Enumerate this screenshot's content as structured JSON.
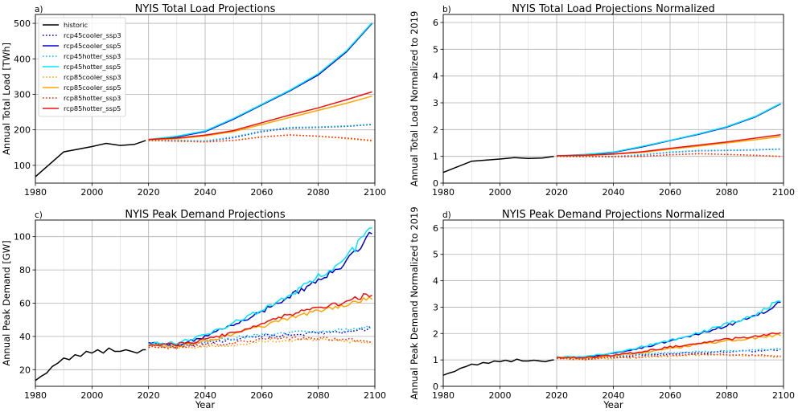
{
  "figure": {
    "series_styles": [
      {
        "name": "historic",
        "color": "#000000",
        "dash": "solid"
      },
      {
        "name": "rcp45cooler_ssp3",
        "color": "#0000ff",
        "dash": "dotted"
      },
      {
        "name": "rcp45cooler_ssp5",
        "color": "#0000cd",
        "dash": "solid"
      },
      {
        "name": "rcp45hotter_ssp3",
        "color": "#00bfff",
        "dash": "dotted"
      },
      {
        "name": "rcp45hotter_ssp5",
        "color": "#00e5ff",
        "dash": "solid"
      },
      {
        "name": "rcp85cooler_ssp3",
        "color": "#ffa500",
        "dash": "dotted"
      },
      {
        "name": "rcp85cooler_ssp5",
        "color": "#ffa500",
        "dash": "solid"
      },
      {
        "name": "rcp85hotter_ssp3",
        "color": "#ff2000",
        "dash": "dotted"
      },
      {
        "name": "rcp85hotter_ssp5",
        "color": "#ee1111",
        "dash": "solid"
      }
    ]
  },
  "chart_data": [
    {
      "type": "line",
      "panel_label": "a)",
      "title": "NYIS Total Load Projections",
      "xlabel": "",
      "ylabel": "Annual Total Load [TWh]",
      "xlim": [
        1980,
        2100
      ],
      "ylim": [
        50,
        525
      ],
      "xticks": [
        1980,
        2000,
        2020,
        2040,
        2060,
        2080,
        2100
      ],
      "yticks": [
        100,
        200,
        300,
        400,
        500
      ],
      "grid": true,
      "legend": "upper left",
      "noise": 0,
      "historic": {
        "x": [
          1980,
          1990,
          2000,
          2005,
          2010,
          2015,
          2019
        ],
        "y": [
          68,
          138,
          153,
          162,
          156,
          159,
          170
        ]
      },
      "series": [
        {
          "name": "rcp45cooler_ssp3",
          "x": [
            2020,
            2030,
            2040,
            2050,
            2060,
            2070,
            2080,
            2090,
            2099
          ],
          "y": [
            170,
            170,
            168,
            178,
            195,
            205,
            207,
            210,
            215
          ]
        },
        {
          "name": "rcp45cooler_ssp5",
          "x": [
            2020,
            2030,
            2040,
            2050,
            2060,
            2070,
            2080,
            2090,
            2099
          ],
          "y": [
            172,
            180,
            195,
            230,
            270,
            310,
            355,
            420,
            500
          ]
        },
        {
          "name": "rcp45hotter_ssp3",
          "x": [
            2020,
            2030,
            2040,
            2050,
            2060,
            2070,
            2080,
            2090,
            2099
          ],
          "y": [
            171,
            171,
            169,
            180,
            197,
            207,
            208,
            211,
            216
          ]
        },
        {
          "name": "rcp45hotter_ssp5",
          "x": [
            2020,
            2030,
            2040,
            2050,
            2060,
            2070,
            2080,
            2090,
            2099
          ],
          "y": [
            173,
            182,
            197,
            232,
            272,
            312,
            358,
            423,
            502
          ]
        },
        {
          "name": "rcp85cooler_ssp3",
          "x": [
            2020,
            2030,
            2040,
            2050,
            2060,
            2070,
            2080,
            2090,
            2099
          ],
          "y": [
            170,
            168,
            167,
            170,
            180,
            185,
            182,
            175,
            168
          ]
        },
        {
          "name": "rcp85cooler_ssp5",
          "x": [
            2020,
            2030,
            2040,
            2050,
            2060,
            2070,
            2080,
            2090,
            2099
          ],
          "y": [
            172,
            175,
            183,
            195,
            215,
            235,
            255,
            275,
            295
          ]
        },
        {
          "name": "rcp85hotter_ssp3",
          "x": [
            2020,
            2030,
            2040,
            2050,
            2060,
            2070,
            2080,
            2090,
            2099
          ],
          "y": [
            170,
            168,
            166,
            170,
            180,
            186,
            182,
            177,
            170
          ]
        },
        {
          "name": "rcp85hotter_ssp5",
          "x": [
            2020,
            2030,
            2040,
            2050,
            2060,
            2070,
            2080,
            2090,
            2099
          ],
          "y": [
            173,
            177,
            185,
            198,
            220,
            242,
            262,
            285,
            307
          ]
        }
      ]
    },
    {
      "type": "line",
      "panel_label": "b)",
      "title": "NYIS Total Load Projections Normalized",
      "xlabel": "",
      "ylabel": "Annual Total Load Normalized to 2019",
      "xlim": [
        1980,
        2100
      ],
      "ylim": [
        0,
        6.3
      ],
      "xticks": [
        1980,
        2000,
        2020,
        2040,
        2060,
        2080,
        2100
      ],
      "yticks": [
        0,
        1,
        2,
        3,
        4,
        5,
        6
      ],
      "grid": true,
      "legend": "none",
      "noise": 0,
      "historic": {
        "x": [
          1980,
          1990,
          2000,
          2005,
          2010,
          2015,
          2019
        ],
        "y": [
          0.4,
          0.82,
          0.9,
          0.95,
          0.92,
          0.94,
          1.0
        ]
      },
      "series": [
        {
          "name": "rcp45cooler_ssp3",
          "x": [
            2020,
            2030,
            2040,
            2050,
            2060,
            2070,
            2080,
            2090,
            2099
          ],
          "y": [
            1.0,
            1.0,
            0.99,
            1.05,
            1.15,
            1.21,
            1.22,
            1.24,
            1.27
          ]
        },
        {
          "name": "rcp45cooler_ssp5",
          "x": [
            2020,
            2030,
            2040,
            2050,
            2060,
            2070,
            2080,
            2090,
            2099
          ],
          "y": [
            1.01,
            1.06,
            1.15,
            1.35,
            1.59,
            1.82,
            2.09,
            2.47,
            2.96
          ]
        },
        {
          "name": "rcp45hotter_ssp3",
          "x": [
            2020,
            2030,
            2040,
            2050,
            2060,
            2070,
            2080,
            2090,
            2099
          ],
          "y": [
            1.0,
            1.01,
            1.0,
            1.06,
            1.16,
            1.22,
            1.23,
            1.25,
            1.28
          ]
        },
        {
          "name": "rcp45hotter_ssp5",
          "x": [
            2020,
            2030,
            2040,
            2050,
            2060,
            2070,
            2080,
            2090,
            2099
          ],
          "y": [
            1.02,
            1.07,
            1.16,
            1.37,
            1.6,
            1.84,
            2.11,
            2.49,
            2.98
          ]
        },
        {
          "name": "rcp85cooler_ssp3",
          "x": [
            2020,
            2030,
            2040,
            2050,
            2060,
            2070,
            2080,
            2090,
            2099
          ],
          "y": [
            1.0,
            0.99,
            0.98,
            1.0,
            1.06,
            1.09,
            1.07,
            1.03,
            0.99
          ]
        },
        {
          "name": "rcp85cooler_ssp5",
          "x": [
            2020,
            2030,
            2040,
            2050,
            2060,
            2070,
            2080,
            2090,
            2099
          ],
          "y": [
            1.01,
            1.03,
            1.08,
            1.15,
            1.27,
            1.38,
            1.5,
            1.62,
            1.74
          ]
        },
        {
          "name": "rcp85hotter_ssp3",
          "x": [
            2020,
            2030,
            2040,
            2050,
            2060,
            2070,
            2080,
            2090,
            2099
          ],
          "y": [
            1.0,
            0.99,
            0.98,
            1.0,
            1.06,
            1.1,
            1.07,
            1.04,
            1.0
          ]
        },
        {
          "name": "rcp85hotter_ssp5",
          "x": [
            2020,
            2030,
            2040,
            2050,
            2060,
            2070,
            2080,
            2090,
            2099
          ],
          "y": [
            1.02,
            1.04,
            1.09,
            1.17,
            1.3,
            1.42,
            1.54,
            1.68,
            1.81
          ]
        }
      ]
    },
    {
      "type": "line",
      "panel_label": "c)",
      "title": "NYIS Peak Demand Projections",
      "xlabel": "Year",
      "ylabel": "Annual Peak Demand [GW]",
      "xlim": [
        1980,
        2100
      ],
      "ylim": [
        10,
        110
      ],
      "xticks": [
        1980,
        2000,
        2020,
        2040,
        2060,
        2080,
        2100
      ],
      "yticks": [
        20,
        40,
        60,
        80,
        100
      ],
      "grid": true,
      "legend": "none",
      "noise": 0.025,
      "historic": {
        "x": [
          1980,
          1982,
          1984,
          1986,
          1988,
          1990,
          1992,
          1994,
          1996,
          1998,
          2000,
          2002,
          2004,
          2006,
          2008,
          2010,
          2012,
          2014,
          2016,
          2018,
          2019
        ],
        "y": [
          13.5,
          16,
          18,
          22,
          24,
          27,
          26,
          29,
          28,
          31,
          30,
          32,
          30,
          33,
          31,
          31,
          32,
          31,
          30,
          32,
          32
        ]
      },
      "series": [
        {
          "name": "rcp45cooler_ssp3",
          "x": [
            2020,
            2030,
            2040,
            2050,
            2060,
            2070,
            2080,
            2090,
            2099
          ],
          "y": [
            35,
            34,
            36,
            38,
            40,
            41,
            42,
            43,
            45
          ]
        },
        {
          "name": "rcp45cooler_ssp5",
          "x": [
            2020,
            2030,
            2040,
            2050,
            2060,
            2070,
            2080,
            2090,
            2099
          ],
          "y": [
            36,
            35,
            40,
            47,
            55,
            64,
            74,
            85,
            103
          ]
        },
        {
          "name": "rcp45hotter_ssp3",
          "x": [
            2020,
            2030,
            2040,
            2050,
            2060,
            2070,
            2080,
            2090,
            2099
          ],
          "y": [
            35,
            35,
            37,
            39,
            41,
            42,
            43,
            44,
            46
          ]
        },
        {
          "name": "rcp45hotter_ssp5",
          "x": [
            2020,
            2030,
            2040,
            2050,
            2060,
            2070,
            2080,
            2090,
            2099
          ],
          "y": [
            36,
            36,
            41,
            48,
            56,
            65,
            76,
            87,
            106
          ]
        },
        {
          "name": "rcp85cooler_ssp3",
          "x": [
            2020,
            2030,
            2040,
            2050,
            2060,
            2070,
            2080,
            2090,
            2099
          ],
          "y": [
            34,
            33,
            34,
            35,
            37,
            38,
            38,
            37,
            36
          ]
        },
        {
          "name": "rcp85cooler_ssp5",
          "x": [
            2020,
            2030,
            2040,
            2050,
            2060,
            2070,
            2080,
            2090,
            2099
          ],
          "y": [
            35,
            34,
            37,
            41,
            46,
            51,
            55,
            59,
            63
          ]
        },
        {
          "name": "rcp85hotter_ssp3",
          "x": [
            2020,
            2030,
            2040,
            2050,
            2060,
            2070,
            2080,
            2090,
            2099
          ],
          "y": [
            34,
            33,
            35,
            36,
            38,
            39,
            39,
            38,
            37
          ]
        },
        {
          "name": "rcp85hotter_ssp5",
          "x": [
            2020,
            2030,
            2040,
            2050,
            2060,
            2070,
            2080,
            2090,
            2099
          ],
          "y": [
            35,
            35,
            38,
            42,
            48,
            53,
            57,
            61,
            66
          ]
        }
      ]
    },
    {
      "type": "line",
      "panel_label": "d)",
      "title": "NYIS Peak Demand Projections Normalized",
      "xlabel": "Year",
      "ylabel": "Annual Peak Demand Normalized to 2019",
      "xlim": [
        1980,
        2100
      ],
      "ylim": [
        0,
        6.3
      ],
      "xticks": [
        1980,
        2000,
        2020,
        2040,
        2060,
        2080,
        2100
      ],
      "yticks": [
        0,
        1,
        2,
        3,
        4,
        5,
        6
      ],
      "grid": true,
      "legend": "none",
      "noise": 0.025,
      "historic": {
        "x": [
          1980,
          1982,
          1984,
          1986,
          1988,
          1990,
          1992,
          1994,
          1996,
          1998,
          2000,
          2002,
          2004,
          2006,
          2008,
          2010,
          2012,
          2014,
          2016,
          2018,
          2019
        ],
        "y": [
          0.42,
          0.5,
          0.56,
          0.68,
          0.75,
          0.84,
          0.81,
          0.9,
          0.87,
          0.96,
          0.93,
          0.99,
          0.93,
          1.03,
          0.96,
          0.96,
          0.99,
          0.96,
          0.93,
          0.99,
          1.0
        ]
      },
      "series": [
        {
          "name": "rcp45cooler_ssp3",
          "x": [
            2020,
            2030,
            2040,
            2050,
            2060,
            2070,
            2080,
            2090,
            2099
          ],
          "y": [
            1.09,
            1.06,
            1.12,
            1.18,
            1.24,
            1.27,
            1.3,
            1.34,
            1.4
          ]
        },
        {
          "name": "rcp45cooler_ssp5",
          "x": [
            2020,
            2030,
            2040,
            2050,
            2060,
            2070,
            2080,
            2090,
            2099
          ],
          "y": [
            1.12,
            1.09,
            1.24,
            1.46,
            1.71,
            1.99,
            2.3,
            2.64,
            3.2
          ]
        },
        {
          "name": "rcp45hotter_ssp3",
          "x": [
            2020,
            2030,
            2040,
            2050,
            2060,
            2070,
            2080,
            2090,
            2099
          ],
          "y": [
            1.09,
            1.09,
            1.15,
            1.21,
            1.27,
            1.3,
            1.34,
            1.37,
            1.43
          ]
        },
        {
          "name": "rcp45hotter_ssp5",
          "x": [
            2020,
            2030,
            2040,
            2050,
            2060,
            2070,
            2080,
            2090,
            2099
          ],
          "y": [
            1.12,
            1.12,
            1.27,
            1.49,
            1.74,
            2.02,
            2.36,
            2.7,
            3.3
          ]
        },
        {
          "name": "rcp85cooler_ssp3",
          "x": [
            2020,
            2030,
            2040,
            2050,
            2060,
            2070,
            2080,
            2090,
            2099
          ],
          "y": [
            1.06,
            1.02,
            1.06,
            1.09,
            1.15,
            1.18,
            1.18,
            1.15,
            1.12
          ]
        },
        {
          "name": "rcp85cooler_ssp5",
          "x": [
            2020,
            2030,
            2040,
            2050,
            2060,
            2070,
            2080,
            2090,
            2099
          ],
          "y": [
            1.09,
            1.06,
            1.15,
            1.27,
            1.43,
            1.58,
            1.71,
            1.83,
            1.96
          ]
        },
        {
          "name": "rcp85hotter_ssp3",
          "x": [
            2020,
            2030,
            2040,
            2050,
            2060,
            2070,
            2080,
            2090,
            2099
          ],
          "y": [
            1.06,
            1.02,
            1.09,
            1.12,
            1.18,
            1.21,
            1.21,
            1.18,
            1.15
          ]
        },
        {
          "name": "rcp85hotter_ssp5",
          "x": [
            2020,
            2030,
            2040,
            2050,
            2060,
            2070,
            2080,
            2090,
            2099
          ],
          "y": [
            1.09,
            1.09,
            1.18,
            1.3,
            1.49,
            1.65,
            1.77,
            1.9,
            2.05
          ]
        }
      ]
    }
  ]
}
